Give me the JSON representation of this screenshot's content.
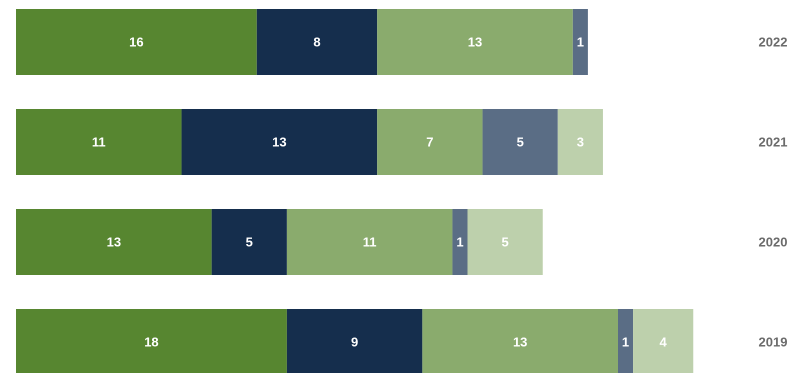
{
  "chart_data": {
    "type": "bar",
    "orientation": "horizontal",
    "stacked": true,
    "title": "",
    "xlabel": "",
    "ylabel": "",
    "categories": [
      "2022",
      "2021",
      "2020",
      "2019"
    ],
    "series": [
      {
        "values": [
          16,
          11,
          13,
          18
        ],
        "color": "#578630"
      },
      {
        "values": [
          8,
          13,
          5,
          9
        ],
        "color": "#152e4d"
      },
      {
        "values": [
          13,
          7,
          11,
          13
        ],
        "color": "#8aab6d"
      },
      {
        "values": [
          1,
          5,
          1,
          1
        ],
        "color": "#5a6d85"
      },
      {
        "values": [
          0,
          3,
          5,
          4
        ],
        "color": "#bdd0ac"
      }
    ],
    "grid": false,
    "legend": "none",
    "data_labels": true,
    "category_labels_position": "right"
  }
}
